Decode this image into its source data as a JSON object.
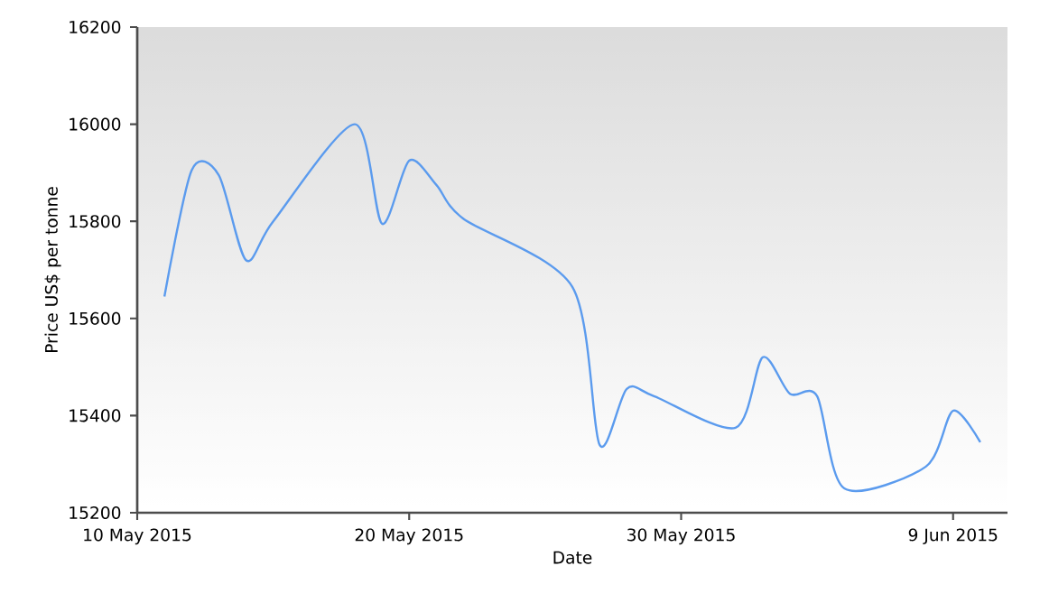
{
  "chart_data": {
    "type": "line",
    "xlabel": "Date",
    "ylabel": "Price US$ per tonne",
    "x": [
      "2015-05-11",
      "2015-05-12",
      "2015-05-13",
      "2015-05-14",
      "2015-05-15",
      "2015-05-18",
      "2015-05-19",
      "2015-05-20",
      "2015-05-21",
      "2015-05-22",
      "2015-05-26",
      "2015-05-27",
      "2015-05-28",
      "2015-05-29",
      "2015-06-01",
      "2015-06-02",
      "2015-06-03",
      "2015-06-04",
      "2015-06-05",
      "2015-06-08",
      "2015-06-09",
      "2015-06-10"
    ],
    "series": [
      {
        "color": "#5b9bee",
        "values": [
          15645,
          15905,
          15895,
          15720,
          15800,
          16000,
          15795,
          15925,
          15875,
          15805,
          15665,
          15340,
          15455,
          15440,
          15375,
          15520,
          15445,
          15440,
          15250,
          15295,
          15410,
          15345
        ]
      }
    ],
    "xlim": [
      "2015-05-10",
      "2015-06-11"
    ],
    "xticks": [
      {
        "value": "2015-05-10",
        "label": "10 May 2015"
      },
      {
        "value": "2015-05-20",
        "label": "20 May 2015"
      },
      {
        "value": "2015-05-30",
        "label": "30 May 2015"
      },
      {
        "value": "2015-06-09",
        "label": "9 Jun 2015"
      }
    ],
    "ylim": [
      15200,
      16200
    ],
    "yticks": [
      15200,
      15400,
      15600,
      15800,
      16000,
      16200
    ],
    "grid": false,
    "marker": "none",
    "line_style": "solid"
  }
}
